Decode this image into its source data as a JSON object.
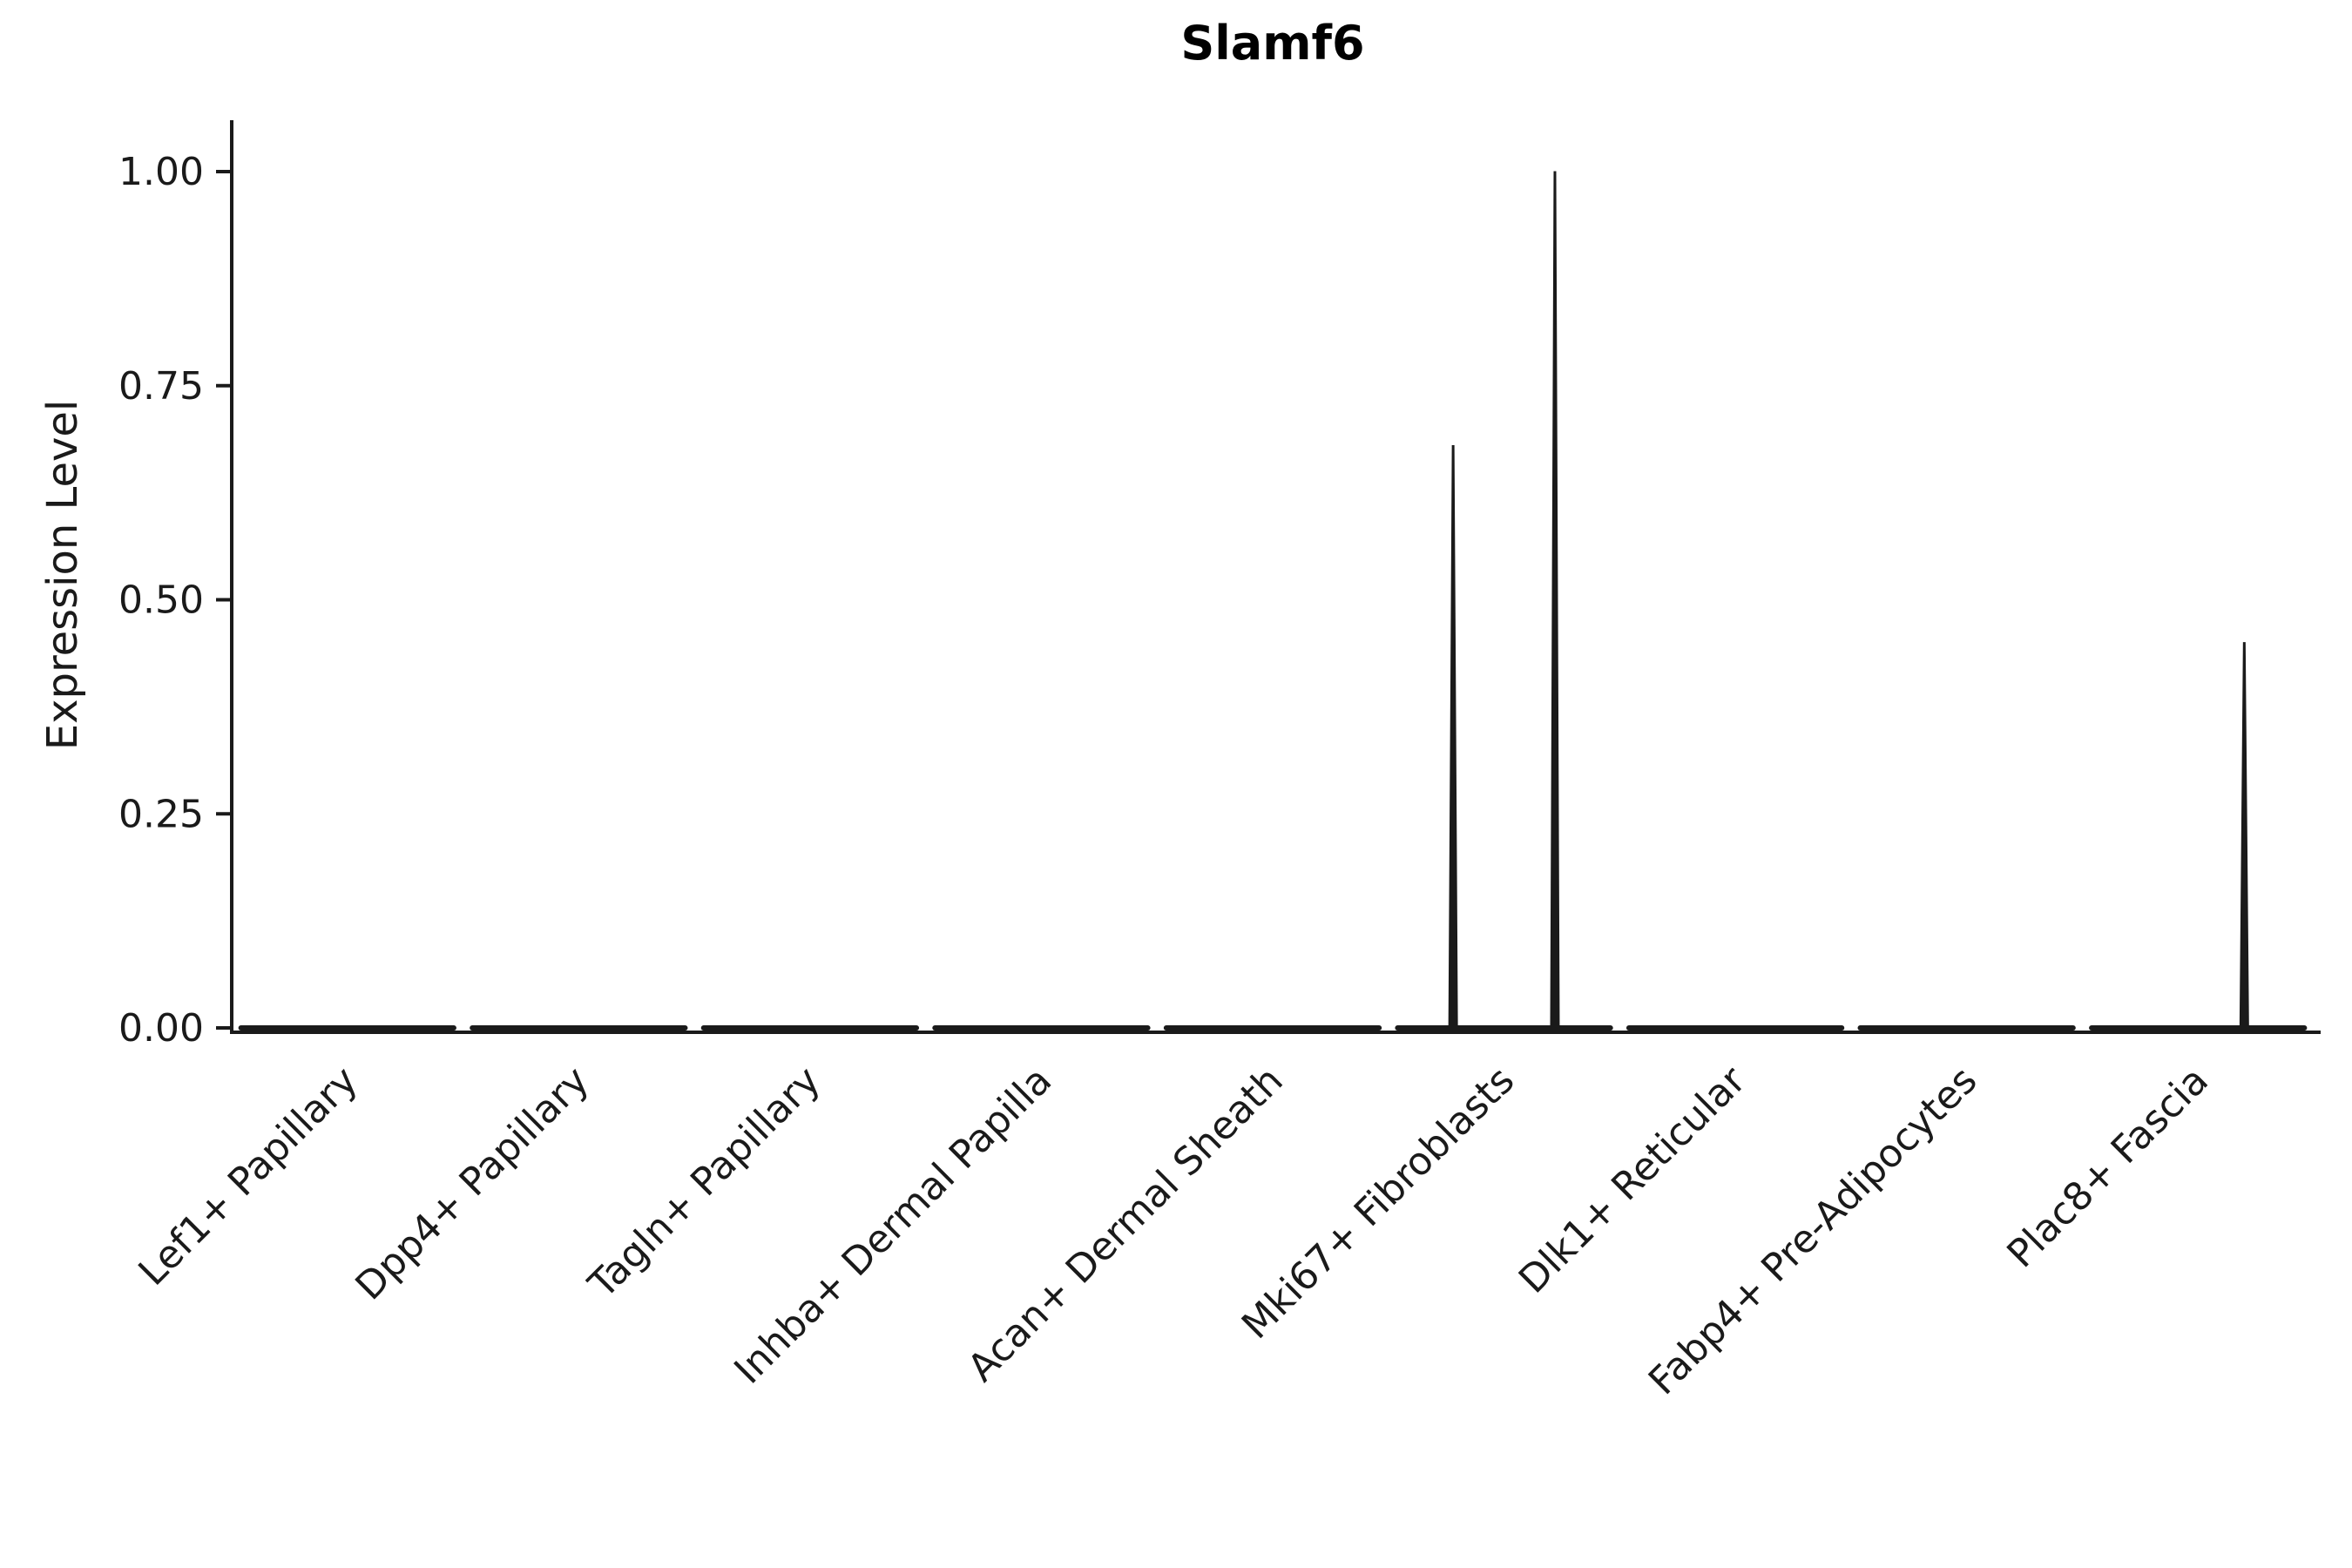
{
  "chart_data": {
    "type": "violin",
    "title": "Slamf6",
    "xlabel": "",
    "ylabel": "Expression Level",
    "ylim": [
      0,
      1.0
    ],
    "yticks": [
      0,
      0.25,
      0.5,
      0.75,
      1.0
    ],
    "ytick_labels": [
      "0.00",
      "0.25",
      "0.50",
      "0.75",
      "1.00"
    ],
    "categories": [
      "Lef1+ Papillary",
      "Dpp4+ Papillary",
      "Tagln+ Papillary",
      "Inhba+ Dermal Papilla",
      "Acan+ Dermal Sheath",
      "Mki67+ Fibroblasts",
      "Dlk1+ Reticular",
      "Fabp4+ Pre-Adipocytes",
      "Plac8+ Fascia"
    ],
    "violins": [
      {
        "category": "Lef1+ Papillary",
        "base_value": 0,
        "spikes": []
      },
      {
        "category": "Dpp4+ Papillary",
        "base_value": 0,
        "spikes": []
      },
      {
        "category": "Tagln+ Papillary",
        "base_value": 0,
        "spikes": []
      },
      {
        "category": "Inhba+ Dermal Papilla",
        "base_value": 0,
        "spikes": []
      },
      {
        "category": "Acan+ Dermal Sheath",
        "base_value": 0,
        "spikes": []
      },
      {
        "category": "Mki67+ Fibroblasts",
        "base_value": 0,
        "spikes": [
          {
            "offset": -0.22,
            "value": 0.68
          },
          {
            "offset": 0.22,
            "value": 1.0
          }
        ]
      },
      {
        "category": "Dlk1+ Reticular",
        "base_value": 0,
        "spikes": []
      },
      {
        "category": "Fabp4+ Pre-Adipocytes",
        "base_value": 0,
        "spikes": []
      },
      {
        "category": "Plac8+ Fascia",
        "base_value": 0,
        "spikes": [
          {
            "offset": 0.2,
            "value": 0.45
          }
        ]
      }
    ],
    "legend": "none",
    "grid": "off",
    "colors": {
      "stroke": "#1a1a1a",
      "background": "#ffffff"
    }
  }
}
